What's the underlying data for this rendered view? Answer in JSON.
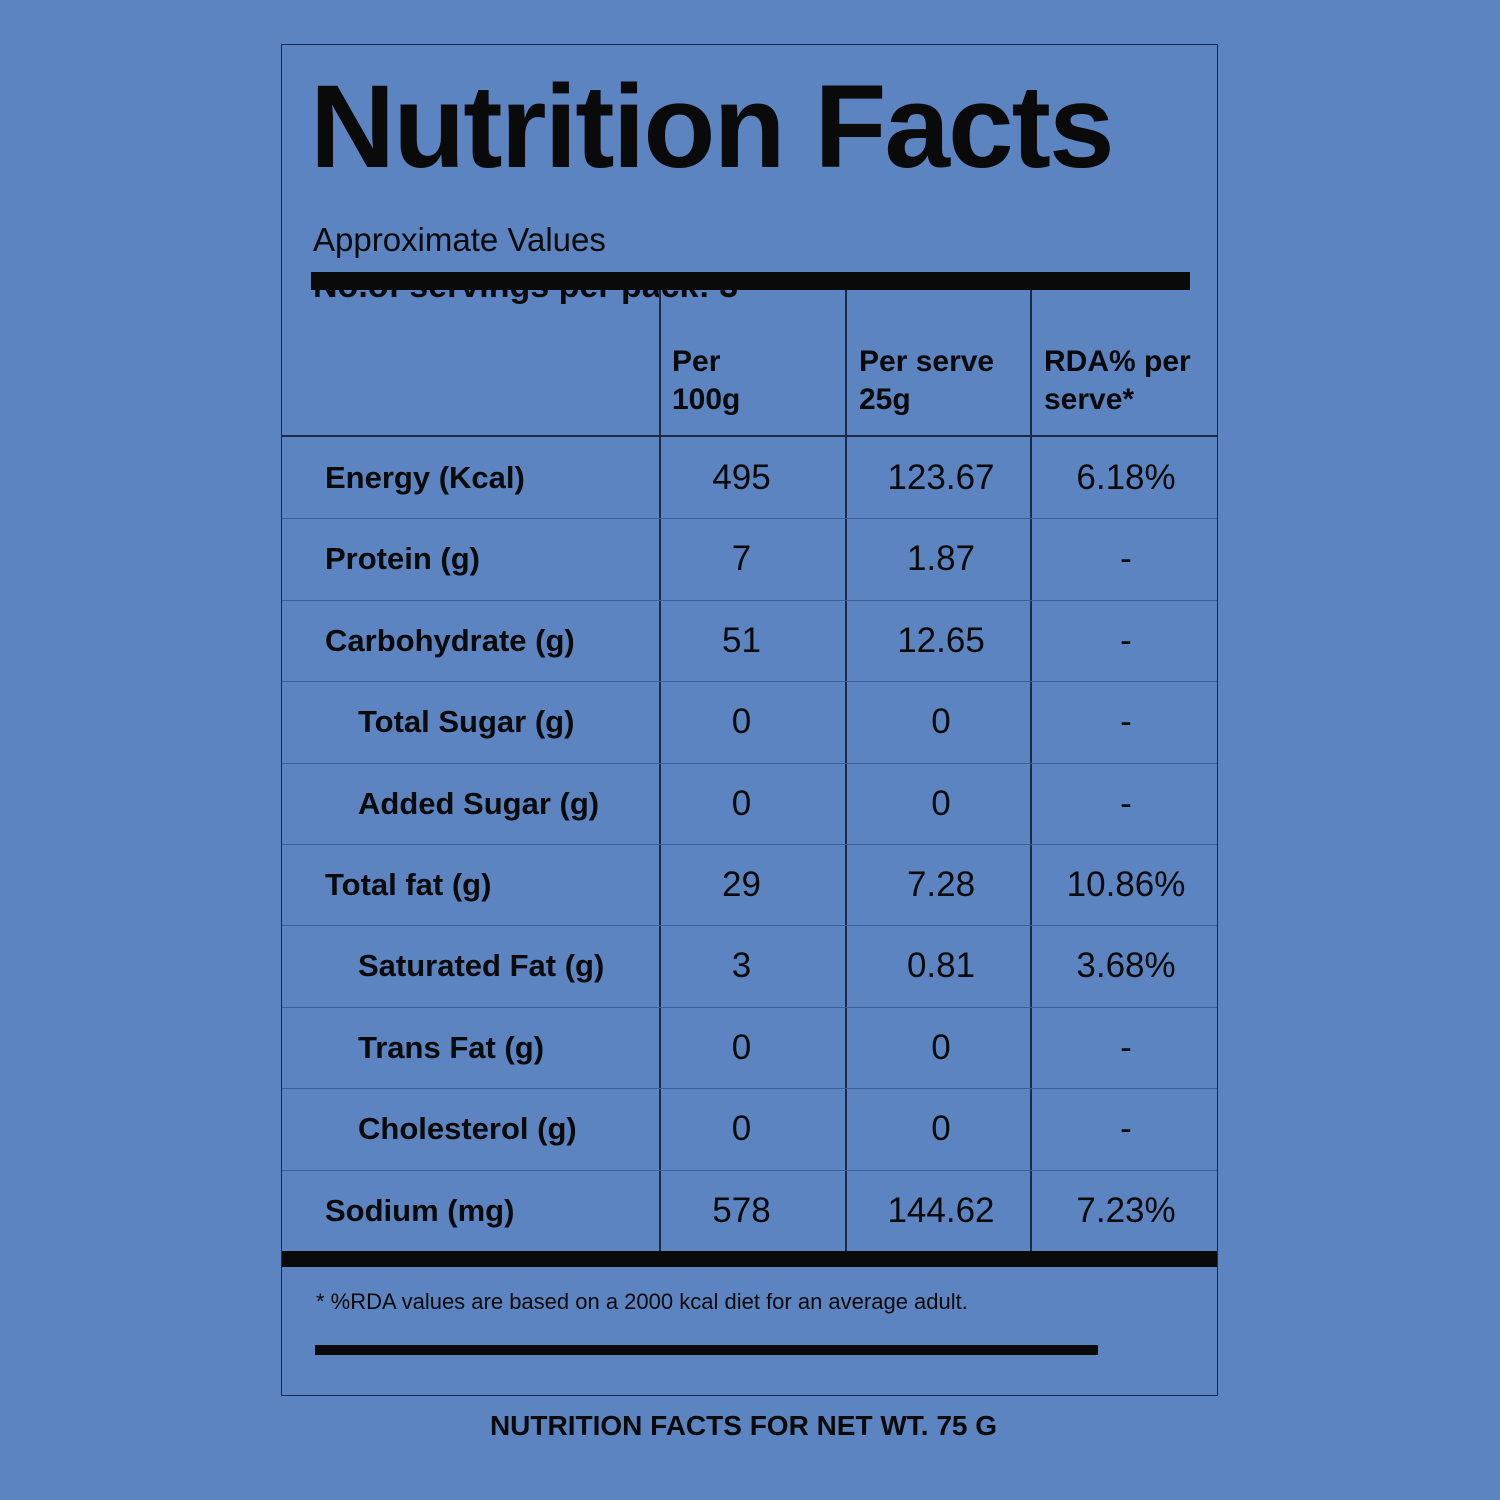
{
  "title": "Nutrition Facts",
  "subtitle": "Approximate Values",
  "servings": "No.of servings per pack: 3",
  "columns": [
    "",
    "Per\n100g",
    "Per serve\n25g",
    "RDA% per\nserve*"
  ],
  "rows": [
    {
      "name": "Energy (Kcal)",
      "per100": "495",
      "perServe": "123.67",
      "rda": "6.18%",
      "indent": false
    },
    {
      "name": "Protein (g)",
      "per100": "7",
      "perServe": "1.87",
      "rda": "-",
      "indent": false
    },
    {
      "name": "Carbohydrate (g)",
      "per100": "51",
      "perServe": "12.65",
      "rda": "-",
      "indent": false
    },
    {
      "name": "Total Sugar (g)",
      "per100": "0",
      "perServe": "0",
      "rda": "-",
      "indent": true
    },
    {
      "name": "Added Sugar (g)",
      "per100": "0",
      "perServe": "0",
      "rda": "-",
      "indent": true
    },
    {
      "name": "Total fat (g)",
      "per100": "29",
      "perServe": "7.28",
      "rda": "10.86%",
      "indent": false
    },
    {
      "name": "Saturated Fat (g)",
      "per100": "3",
      "perServe": "0.81",
      "rda": "3.68%",
      "indent": true
    },
    {
      "name": "Trans Fat (g)",
      "per100": "0",
      "perServe": "0",
      "rda": "-",
      "indent": true
    },
    {
      "name": "Cholesterol (g)",
      "per100": "0",
      "perServe": "0",
      "rda": "-",
      "indent": true
    },
    {
      "name": "Sodium (mg)",
      "per100": "578",
      "perServe": "144.62",
      "rda": "7.23%",
      "indent": false
    }
  ],
  "footnote": "* %RDA values are based on a 2000 kcal diet for an average adult.",
  "net_weight": "NUTRITION FACTS FOR NET WT. 75 G",
  "colors": {
    "background": "#5b84c1",
    "ink": "#0a0a0a",
    "border": "#1c2a45"
  }
}
